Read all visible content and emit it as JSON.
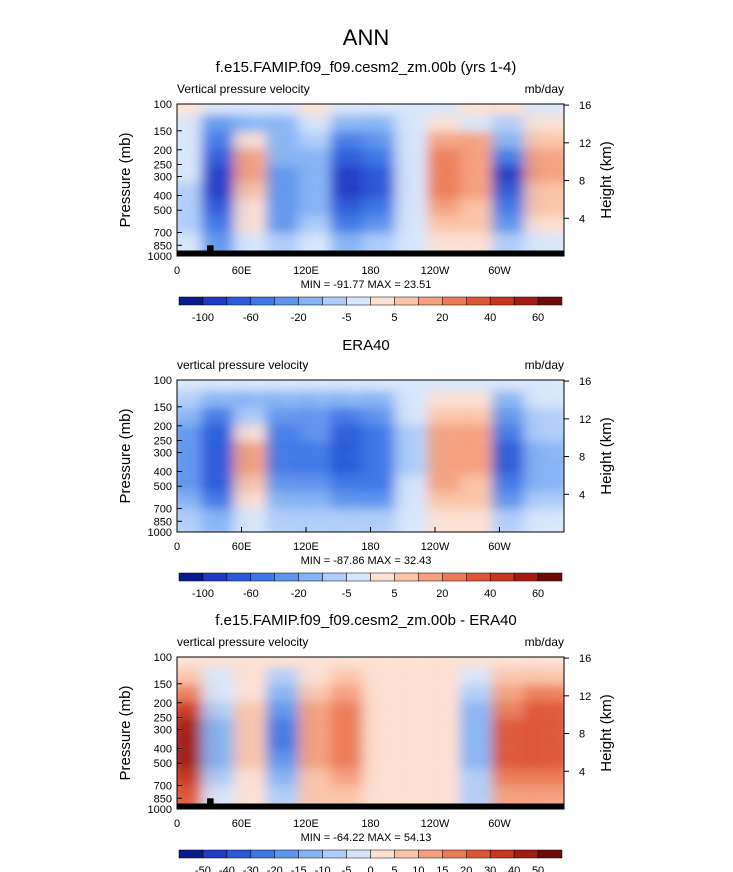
{
  "figure_title": "ANN",
  "chart_data": [
    {
      "type": "heatmap",
      "title": "f.e15.FAMIP.f09_f09.cesm2_zm.00b (yrs 1-4)",
      "left_label": "Vertical pressure velocity",
      "right_label": "mb/day",
      "ylabel": "Pressure (mb)",
      "ylabel_right": "Height (km)",
      "x_ticks": [
        "0",
        "60E",
        "120E",
        "180",
        "120W",
        "60W"
      ],
      "x_tick_values": [
        0,
        60,
        120,
        180,
        240,
        300
      ],
      "xlim": [
        0,
        360
      ],
      "y_ticks": [
        "100",
        "150",
        "200",
        "250",
        "300",
        "400",
        "500",
        "700",
        "850",
        "1000"
      ],
      "y_tick_values": [
        100,
        150,
        200,
        250,
        300,
        400,
        500,
        700,
        850,
        1000
      ],
      "ylim": [
        1000,
        100
      ],
      "y_scale": "log",
      "height_ticks": [
        "4",
        "8",
        "12",
        "16"
      ],
      "height_tick_values": [
        4,
        8,
        12,
        16
      ],
      "stats": "MIN = -91.77   MAX = 23.51",
      "colorbar_labels": [
        "-100",
        "-60",
        "-20",
        "-5",
        "5",
        "20",
        "40",
        "60"
      ],
      "levels": [
        -100,
        -80,
        -60,
        -40,
        -20,
        -10,
        -5,
        -2,
        2,
        5,
        10,
        20,
        30,
        40,
        60
      ],
      "colors": [
        "#0a1a8c",
        "#1f3ac4",
        "#2a5ad8",
        "#3f78e6",
        "#5e95ee",
        "#86b3f4",
        "#afcdf8",
        "#d7e6fb",
        "#fde1d2",
        "#fbc4a8",
        "#f5a07e",
        "#ec7c58",
        "#de5637",
        "#c8361f",
        "#a11d13",
        "#6e0b08"
      ],
      "cells": [
        [
          1,
          0,
          -1,
          0,
          1,
          0,
          -1,
          -1,
          0,
          1,
          1,
          0
        ],
        [
          -1,
          -4,
          -3,
          -3,
          -1,
          -3,
          -3,
          0,
          1,
          0,
          -2,
          1
        ],
        [
          -1,
          -5,
          1,
          -3,
          -2,
          -5,
          -4,
          -1,
          3,
          3,
          -3,
          2
        ],
        [
          -1,
          -6,
          3,
          -3,
          -3,
          -6,
          -5,
          -1,
          4,
          3,
          -5,
          3
        ],
        [
          -1,
          -7,
          3,
          -4,
          -3,
          -7,
          -6,
          -1,
          4,
          3,
          -7,
          3
        ],
        [
          -2,
          -7,
          2,
          -4,
          -3,
          -7,
          -6,
          -1,
          4,
          3,
          -6,
          2
        ],
        [
          -2,
          -6,
          1,
          -4,
          -3,
          -6,
          -5,
          -1,
          3,
          2,
          -5,
          2
        ],
        [
          -2,
          -5,
          1,
          -4,
          -2,
          -5,
          -4,
          -1,
          2,
          2,
          -4,
          1
        ],
        [
          -1,
          -4,
          0,
          -2,
          -1,
          -3,
          -2,
          0,
          1,
          1,
          -2,
          0
        ]
      ],
      "topography": [
        [
          0,
          28,
          0,
          1000
        ],
        [
          28,
          34,
          850,
          1000
        ],
        [
          34,
          360,
          0,
          1000
        ]
      ],
      "topo_top_mb": 920
    },
    {
      "type": "heatmap",
      "title": "ERA40",
      "left_label": "vertical pressure velocity",
      "right_label": "mb/day",
      "ylabel": "Pressure (mb)",
      "ylabel_right": "Height (km)",
      "x_ticks": [
        "0",
        "60E",
        "120E",
        "180",
        "120W",
        "60W"
      ],
      "x_tick_values": [
        0,
        60,
        120,
        180,
        240,
        300
      ],
      "xlim": [
        0,
        360
      ],
      "y_ticks": [
        "100",
        "150",
        "200",
        "250",
        "300",
        "400",
        "500",
        "700",
        "850",
        "1000"
      ],
      "y_tick_values": [
        100,
        150,
        200,
        250,
        300,
        400,
        500,
        700,
        850,
        1000
      ],
      "ylim": [
        1000,
        100
      ],
      "y_scale": "log",
      "height_ticks": [
        "4",
        "8",
        "12",
        "16"
      ],
      "height_tick_values": [
        4,
        8,
        12,
        16
      ],
      "stats": "MIN = -87.86   MAX = 32.43",
      "colorbar_labels": [
        "-100",
        "-60",
        "-20",
        "-5",
        "5",
        "20",
        "40",
        "60"
      ],
      "levels": [
        -100,
        -80,
        -60,
        -40,
        -20,
        -10,
        -5,
        -2,
        2,
        5,
        10,
        20,
        30,
        40,
        60
      ],
      "colors": [
        "#0a1a8c",
        "#1f3ac4",
        "#2a5ad8",
        "#3f78e6",
        "#5e95ee",
        "#86b3f4",
        "#afcdf8",
        "#d7e6fb",
        "#fde1d2",
        "#fbc4a8",
        "#f5a07e",
        "#ec7c58",
        "#de5637",
        "#c8361f",
        "#a11d13",
        "#6e0b08"
      ],
      "cells": [
        [
          -1,
          0,
          -1,
          -1,
          -1,
          -1,
          -1,
          -1,
          0,
          0,
          -1,
          0
        ],
        [
          -2,
          -3,
          -3,
          -3,
          -3,
          -3,
          -3,
          -1,
          1,
          1,
          -3,
          -1
        ],
        [
          -3,
          -5,
          -2,
          -4,
          -4,
          -5,
          -4,
          -1,
          2,
          2,
          -4,
          -2
        ],
        [
          -4,
          -6,
          1,
          -5,
          -4,
          -6,
          -5,
          -2,
          3,
          3,
          -5,
          -2
        ],
        [
          -4,
          -6,
          3,
          -5,
          -5,
          -6,
          -5,
          -2,
          3,
          3,
          -6,
          -3
        ],
        [
          -4,
          -6,
          3,
          -5,
          -5,
          -6,
          -5,
          -2,
          3,
          3,
          -6,
          -3
        ],
        [
          -4,
          -6,
          2,
          -4,
          -4,
          -5,
          -5,
          -1,
          3,
          2,
          -5,
          -3
        ],
        [
          -3,
          -5,
          1,
          -3,
          -3,
          -4,
          -4,
          -1,
          2,
          2,
          -4,
          -2
        ],
        [
          -2,
          -3,
          0,
          -2,
          -2,
          -2,
          -2,
          0,
          1,
          1,
          -2,
          -1
        ]
      ],
      "topography": [],
      "topo_top_mb": 1000
    },
    {
      "type": "heatmap",
      "title": "f.e15.FAMIP.f09_f09.cesm2_zm.00b - ERA40",
      "left_label": "vertical pressure velocity",
      "right_label": "mb/day",
      "ylabel": "Pressure (mb)",
      "ylabel_right": "Height (km)",
      "x_ticks": [
        "0",
        "60E",
        "120E",
        "180",
        "120W",
        "60W"
      ],
      "x_tick_values": [
        0,
        60,
        120,
        180,
        240,
        300
      ],
      "xlim": [
        0,
        360
      ],
      "y_ticks": [
        "100",
        "150",
        "200",
        "250",
        "300",
        "400",
        "500",
        "700",
        "850",
        "1000"
      ],
      "y_tick_values": [
        100,
        150,
        200,
        250,
        300,
        400,
        500,
        700,
        850,
        1000
      ],
      "ylim": [
        1000,
        100
      ],
      "y_scale": "log",
      "height_ticks": [
        "4",
        "8",
        "12",
        "16"
      ],
      "height_tick_values": [
        4,
        8,
        12,
        16
      ],
      "stats": "MIN = -64.22   MAX = 54.13",
      "colorbar_labels": [
        "-50",
        "-40",
        "-30",
        "-20",
        "-15",
        "-10",
        "-5",
        "0",
        "5",
        "10",
        "15",
        "20",
        "30",
        "40",
        "50"
      ],
      "levels": [
        -50,
        -40,
        -30,
        -20,
        -15,
        -10,
        -5,
        0,
        5,
        10,
        15,
        20,
        30,
        40,
        50
      ],
      "colors": [
        "#0a1a8c",
        "#1f3ac4",
        "#2a5ad8",
        "#3f78e6",
        "#5e95ee",
        "#86b3f4",
        "#afcdf8",
        "#d7e6fb",
        "#fde1d2",
        "#fbc4a8",
        "#f5a07e",
        "#ec7c58",
        "#de5637",
        "#c8361f",
        "#a11d13",
        "#6e0b08"
      ],
      "cells": [
        [
          1,
          1,
          1,
          1,
          1,
          1,
          1,
          1,
          1,
          1,
          1,
          1
        ],
        [
          2,
          -1,
          1,
          -2,
          1,
          2,
          1,
          1,
          1,
          -1,
          2,
          2
        ],
        [
          4,
          -1,
          1,
          -3,
          2,
          3,
          1,
          1,
          1,
          -2,
          3,
          4
        ],
        [
          6,
          -2,
          2,
          -4,
          3,
          4,
          1,
          1,
          1,
          -3,
          4,
          5
        ],
        [
          7,
          -3,
          2,
          -5,
          3,
          4,
          1,
          1,
          1,
          -3,
          5,
          5
        ],
        [
          7,
          -3,
          2,
          -5,
          3,
          4,
          1,
          1,
          1,
          -3,
          5,
          5
        ],
        [
          7,
          -3,
          2,
          -4,
          3,
          4,
          1,
          1,
          1,
          -3,
          5,
          5
        ],
        [
          6,
          -2,
          1,
          -3,
          2,
          3,
          1,
          1,
          1,
          -2,
          4,
          4
        ],
        [
          5,
          -1,
          1,
          -2,
          2,
          2,
          1,
          1,
          1,
          -2,
          3,
          3
        ]
      ],
      "topography": [
        [
          0,
          28,
          0,
          1000
        ],
        [
          28,
          34,
          850,
          1000
        ],
        [
          34,
          360,
          0,
          1000
        ]
      ],
      "topo_top_mb": 920
    }
  ]
}
